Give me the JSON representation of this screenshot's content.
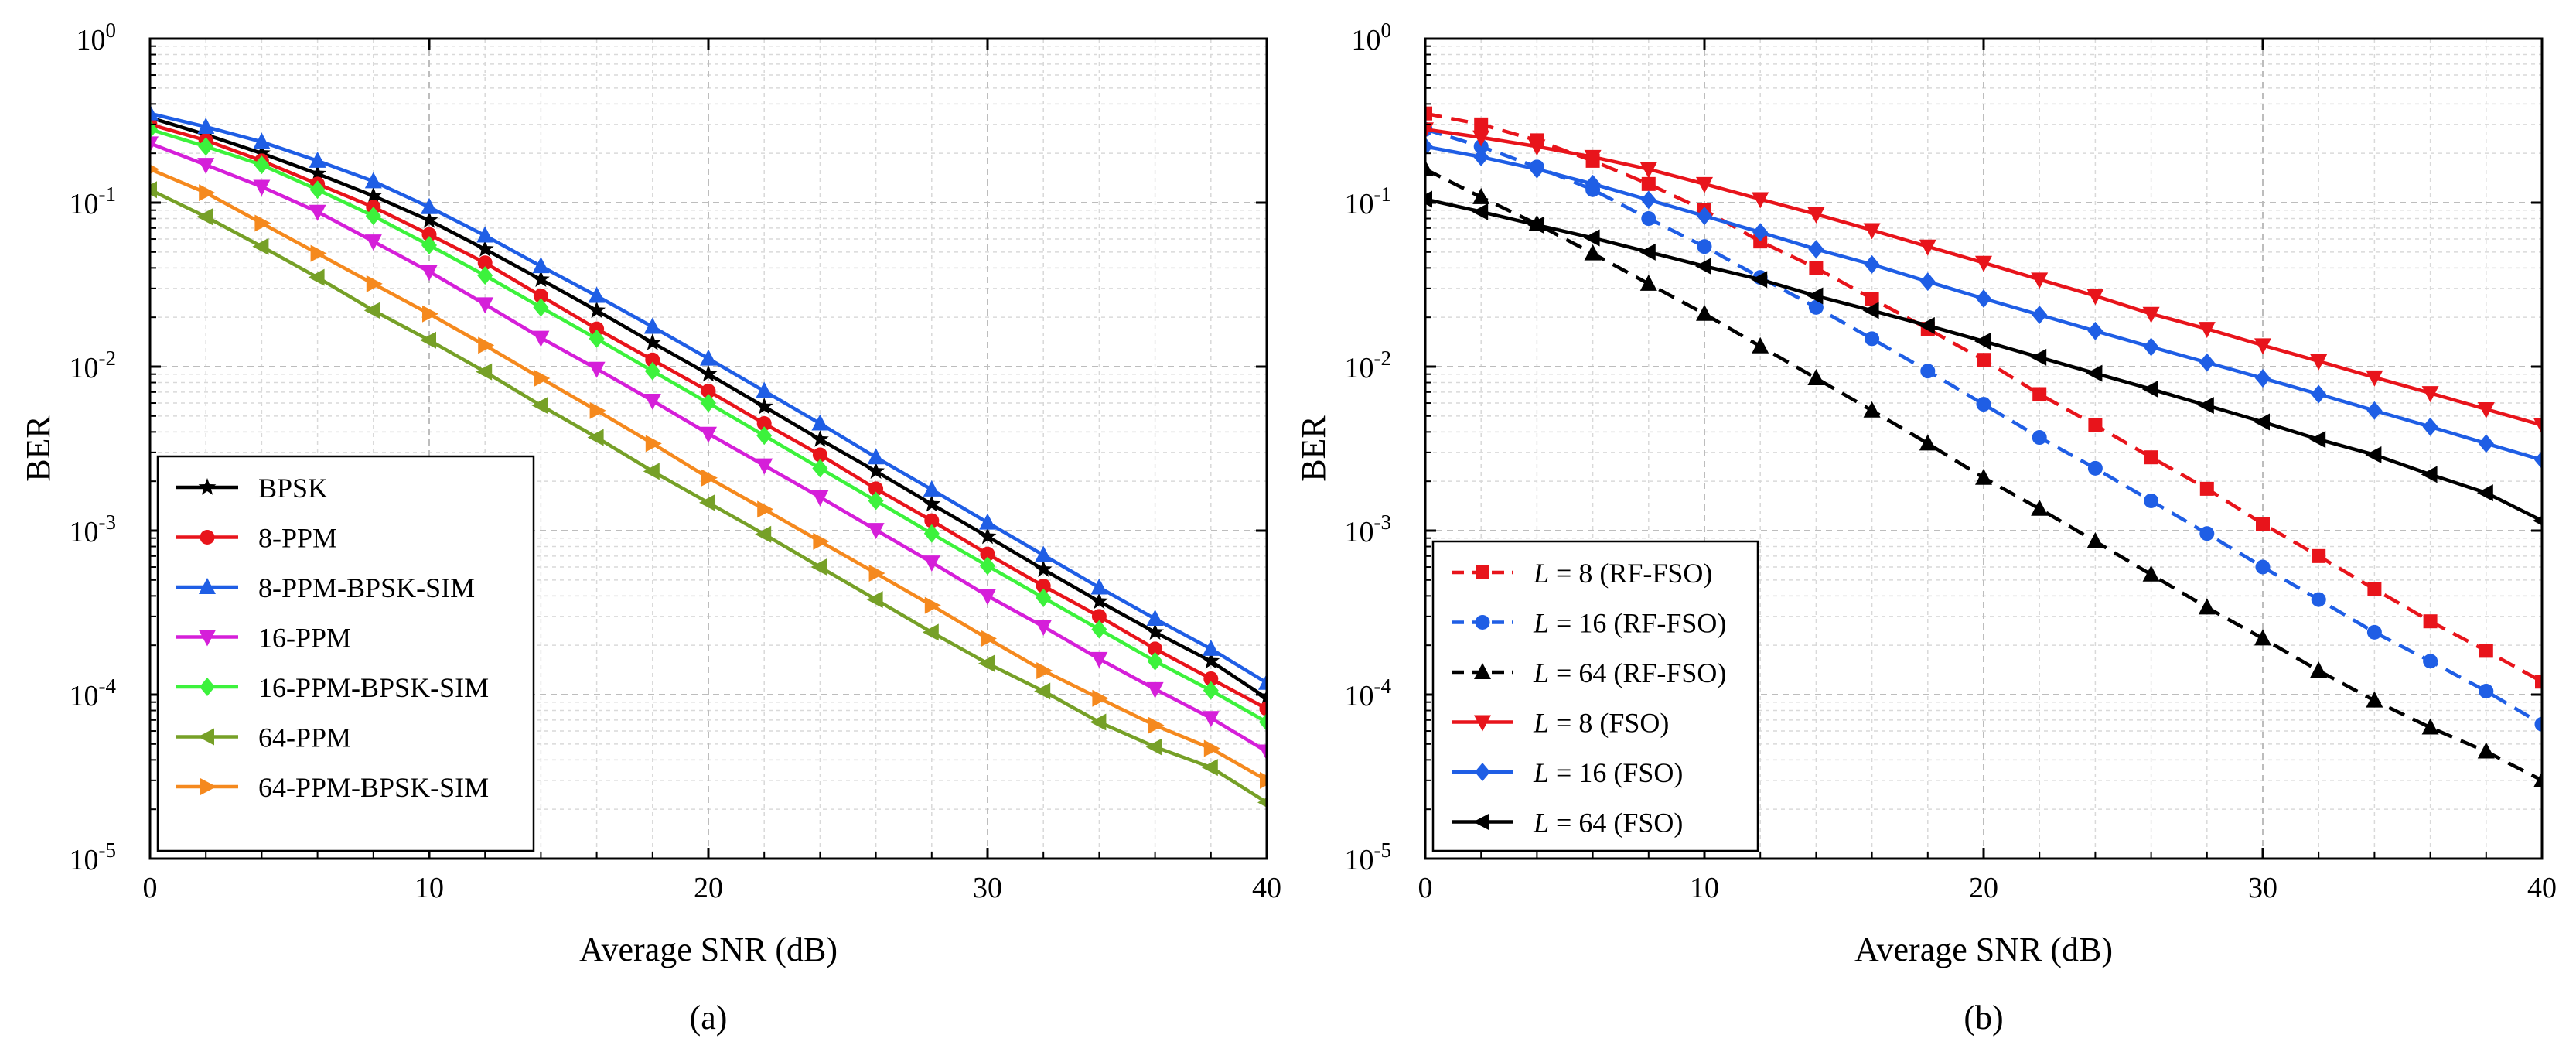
{
  "figure": {
    "panels": [
      "(a)",
      "(b)"
    ]
  },
  "chart_data": [
    {
      "type": "line",
      "caption": "(a)",
      "xlabel": "Average SNR (dB)",
      "ylabel": "BER",
      "xscale": "linear",
      "yscale": "log",
      "xlim": [
        0,
        40
      ],
      "ylim": [
        1e-05,
        1
      ],
      "xticks": [
        0,
        10,
        20,
        30,
        40
      ],
      "ytick_exponents": [
        0,
        -1,
        -2,
        -3,
        -4,
        -5
      ],
      "grid": true,
      "legend_position": "bottom-left",
      "x": [
        0,
        2,
        4,
        6,
        8,
        10,
        12,
        14,
        16,
        18,
        20,
        22,
        24,
        26,
        28,
        30,
        32,
        34,
        36,
        38,
        40
      ],
      "series": [
        {
          "name": "BPSK",
          "color": "#000000",
          "marker": "star",
          "dash": "solid",
          "values": [
            0.33,
            0.26,
            0.2,
            0.15,
            0.11,
            0.078,
            0.052,
            0.034,
            0.022,
            0.014,
            0.009,
            0.0057,
            0.0036,
            0.0023,
            0.00145,
            0.00092,
            0.00058,
            0.00037,
            0.00024,
            0.00016,
            9.5e-05
          ]
        },
        {
          "name": "8-PPM",
          "color": "#e8141b",
          "marker": "circle",
          "dash": "solid",
          "values": [
            0.3,
            0.24,
            0.18,
            0.13,
            0.094,
            0.064,
            0.043,
            0.027,
            0.017,
            0.011,
            0.0071,
            0.0045,
            0.0029,
            0.0018,
            0.00115,
            0.00072,
            0.00046,
            0.0003,
            0.00019,
            0.000125,
            8.2e-05
          ]
        },
        {
          "name": "8-PPM-BPSK-SIM",
          "color": "#1f5ee5",
          "marker": "triangle-up",
          "dash": "solid",
          "values": [
            0.35,
            0.29,
            0.235,
            0.18,
            0.135,
            0.094,
            0.063,
            0.041,
            0.027,
            0.0175,
            0.0112,
            0.0071,
            0.0045,
            0.0028,
            0.00178,
            0.00112,
            0.00071,
            0.00045,
            0.00029,
            0.00019,
            0.000118
          ]
        },
        {
          "name": "16-PPM",
          "color": "#d51fd9",
          "marker": "triangle-down",
          "dash": "solid",
          "values": [
            0.23,
            0.17,
            0.125,
            0.088,
            0.058,
            0.038,
            0.024,
            0.015,
            0.0097,
            0.0062,
            0.0039,
            0.0025,
            0.0016,
            0.00101,
            0.00064,
            0.0004,
            0.00026,
            0.000165,
            0.000108,
            7.2e-05,
            4.5e-05
          ]
        },
        {
          "name": "16-PPM-BPSK-SIM",
          "color": "#3cf23c",
          "marker": "diamond",
          "dash": "solid",
          "values": [
            0.28,
            0.22,
            0.17,
            0.12,
            0.083,
            0.055,
            0.036,
            0.023,
            0.0148,
            0.0094,
            0.006,
            0.0038,
            0.0024,
            0.00152,
            0.00096,
            0.00061,
            0.00039,
            0.00025,
            0.00016,
            0.000106,
            6.8e-05
          ]
        },
        {
          "name": "64-PPM",
          "color": "#76a027",
          "marker": "triangle-left",
          "dash": "solid",
          "values": [
            0.12,
            0.082,
            0.054,
            0.035,
            0.022,
            0.0145,
            0.0093,
            0.0058,
            0.0037,
            0.0023,
            0.00148,
            0.00095,
            0.0006,
            0.00038,
            0.00024,
            0.000155,
            0.000105,
            6.8e-05,
            4.8e-05,
            3.6e-05,
            2.2e-05
          ]
        },
        {
          "name": "64-PPM-BPSK-SIM",
          "color": "#f5891e",
          "marker": "triangle-right",
          "dash": "solid",
          "values": [
            0.16,
            0.115,
            0.075,
            0.049,
            0.032,
            0.021,
            0.0135,
            0.0085,
            0.0054,
            0.0034,
            0.0021,
            0.00135,
            0.00086,
            0.00055,
            0.00035,
            0.00022,
            0.00014,
            9.5e-05,
            6.5e-05,
            4.7e-05,
            3e-05
          ]
        }
      ]
    },
    {
      "type": "line",
      "caption": "(b)",
      "xlabel": "Average SNR (dB)",
      "ylabel": "BER",
      "xscale": "linear",
      "yscale": "log",
      "xlim": [
        0,
        40
      ],
      "ylim": [
        1e-05,
        1
      ],
      "xticks": [
        0,
        10,
        20,
        30,
        40
      ],
      "ytick_exponents": [
        0,
        -1,
        -2,
        -3,
        -4,
        -5
      ],
      "grid": true,
      "legend_position": "bottom-left",
      "x": [
        0,
        2,
        4,
        6,
        8,
        10,
        12,
        14,
        16,
        18,
        20,
        22,
        24,
        26,
        28,
        30,
        32,
        34,
        36,
        38,
        40
      ],
      "series": [
        {
          "name": "L = 8 (RF-FSO)",
          "label_var": "L",
          "label_rest": " = 8 (RF-FSO)",
          "color": "#e8141b",
          "marker": "square",
          "dash": "dashed",
          "values": [
            0.35,
            0.3,
            0.24,
            0.18,
            0.13,
            0.09,
            0.058,
            0.04,
            0.026,
            0.017,
            0.011,
            0.0068,
            0.0044,
            0.0028,
            0.0018,
            0.0011,
            0.0007,
            0.00044,
            0.00028,
            0.000185,
            0.00012
          ]
        },
        {
          "name": "L = 16 (RF-FSO)",
          "label_var": "L",
          "label_rest": " = 16 (RF-FSO)",
          "color": "#1f5ee5",
          "marker": "circle",
          "dash": "dashed",
          "values": [
            0.28,
            0.22,
            0.165,
            0.12,
            0.08,
            0.054,
            0.035,
            0.023,
            0.0148,
            0.0094,
            0.0059,
            0.0037,
            0.0024,
            0.00152,
            0.00096,
            0.0006,
            0.00038,
            0.00024,
            0.00016,
            0.000105,
            6.6e-05
          ]
        },
        {
          "name": "L = 64 (RF-FSO)",
          "label_var": "L",
          "label_rest": " = 64 (RF-FSO)",
          "color": "#000000",
          "marker": "triangle-up",
          "dash": "dashed",
          "values": [
            0.16,
            0.108,
            0.074,
            0.049,
            0.032,
            0.021,
            0.0133,
            0.0085,
            0.0054,
            0.0034,
            0.0021,
            0.00136,
            0.00086,
            0.00054,
            0.00034,
            0.00022,
            0.00014,
            9.2e-05,
            6.3e-05,
            4.5e-05,
            3e-05
          ]
        },
        {
          "name": "L = 8 (FSO)",
          "label_var": "L",
          "label_rest": " = 8 (FSO)",
          "color": "#e8141b",
          "marker": "triangle-down",
          "dash": "solid",
          "values": [
            0.28,
            0.25,
            0.22,
            0.19,
            0.16,
            0.13,
            0.105,
            0.085,
            0.068,
            0.054,
            0.043,
            0.034,
            0.027,
            0.021,
            0.017,
            0.0135,
            0.0108,
            0.0086,
            0.0069,
            0.0055,
            0.0044
          ]
        },
        {
          "name": "L = 16 (FSO)",
          "label_var": "L",
          "label_rest": " = 16 (FSO)",
          "color": "#1f5ee5",
          "marker": "diamond",
          "dash": "solid",
          "values": [
            0.22,
            0.19,
            0.16,
            0.13,
            0.104,
            0.083,
            0.066,
            0.052,
            0.042,
            0.033,
            0.026,
            0.0207,
            0.0165,
            0.0132,
            0.0106,
            0.0085,
            0.0068,
            0.0054,
            0.0043,
            0.0034,
            0.0027
          ]
        },
        {
          "name": "L = 64 (FSO)",
          "label_var": "L",
          "label_rest": " = 64 (FSO)",
          "color": "#000000",
          "marker": "triangle-left",
          "dash": "solid",
          "values": [
            0.105,
            0.088,
            0.073,
            0.061,
            0.05,
            0.041,
            0.034,
            0.027,
            0.022,
            0.0178,
            0.0143,
            0.0114,
            0.0091,
            0.0073,
            0.0058,
            0.0046,
            0.0036,
            0.0029,
            0.0022,
            0.0017,
            0.00115
          ]
        }
      ]
    }
  ]
}
